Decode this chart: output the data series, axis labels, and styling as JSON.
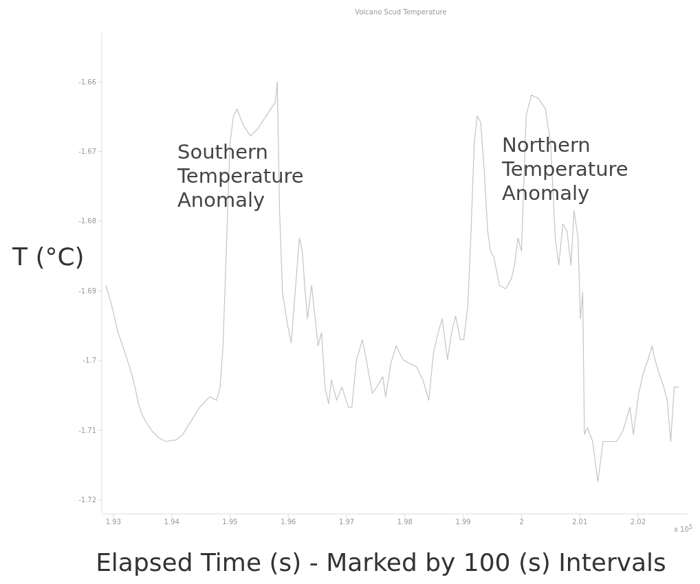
{
  "chart_data": {
    "type": "line",
    "title": "Volcano Scud Temperature",
    "xlabel": "Elapsed Time (s) - Marked by 100 (s) Intervals",
    "ylabel": "T (°C)",
    "annotations": [
      "Southern\nTemperature\nAnomaly",
      "Northern\nTemperature\nAnomaly",
      "x 10$^{5}$"
    ],
    "x": [
      1.9287,
      1.9297,
      1.9308,
      1.932,
      1.9331,
      1.9337,
      1.9343,
      1.9349,
      1.9355,
      1.9366,
      1.9378,
      1.939,
      1.9407,
      1.9419,
      1.943,
      1.9448,
      1.9465,
      1.9477,
      1.9483,
      1.9488,
      1.9494,
      1.95,
      1.9506,
      1.9512,
      1.9523,
      1.9535,
      1.9547,
      1.9558,
      1.957,
      1.9578,
      1.9581,
      1.9585,
      1.959,
      1.9599,
      1.9605,
      1.961,
      1.9619,
      1.9624,
      1.9629,
      1.9633,
      1.964,
      1.9645,
      1.9651,
      1.9657,
      1.9663,
      1.9669,
      1.9674,
      1.9683,
      1.9692,
      1.9703,
      1.9709,
      1.9717,
      1.9727,
      1.9736,
      1.9744,
      1.9752,
      1.9762,
      1.9767,
      1.9776,
      1.9785,
      1.9797,
      1.9808,
      1.982,
      1.9831,
      1.9841,
      1.9849,
      1.9857,
      1.9864,
      1.9873,
      1.988,
      1.9887,
      1.9895,
      1.9901,
      1.9908,
      1.9913,
      1.9919,
      1.9924,
      1.993,
      1.9936,
      1.9942,
      1.9947,
      1.9953,
      1.9962,
      1.9973,
      1.9983,
      1.9988,
      1.9994,
      2.0,
      2.0008,
      2.0017,
      2.0029,
      2.0041,
      2.005,
      2.0058,
      2.0064,
      2.0071,
      2.0078,
      2.0085,
      2.009,
      2.0097,
      2.0101,
      2.0105,
      2.0108,
      2.0113,
      2.0122,
      2.0131,
      2.014,
      2.0151,
      2.0163,
      2.0174,
      2.0186,
      2.0192,
      2.0201,
      2.0209,
      2.0217,
      2.0224,
      2.0229,
      2.0236,
      2.0244,
      2.025,
      2.0256,
      2.0262,
      2.027
    ],
    "series": [
      {
        "color": "#c4c4c4",
        "values": [
          -1.6892,
          -1.6921,
          -1.696,
          -1.6989,
          -1.7018,
          -1.7038,
          -1.7062,
          -1.7077,
          -1.7087,
          -1.7101,
          -1.7111,
          -1.7116,
          -1.7114,
          -1.7106,
          -1.7091,
          -1.7067,
          -1.7052,
          -1.7057,
          -1.7038,
          -1.6979,
          -1.6833,
          -1.6688,
          -1.6649,
          -1.6639,
          -1.6663,
          -1.6678,
          -1.6668,
          -1.6654,
          -1.6639,
          -1.6629,
          -1.66,
          -1.6785,
          -1.6902,
          -1.695,
          -1.6975,
          -1.6921,
          -1.6824,
          -1.6843,
          -1.6902,
          -1.694,
          -1.6892,
          -1.6931,
          -1.6979,
          -1.696,
          -1.7038,
          -1.7062,
          -1.7028,
          -1.7057,
          -1.7038,
          -1.7067,
          -1.7067,
          -1.6999,
          -1.697,
          -1.7009,
          -1.7047,
          -1.7038,
          -1.7023,
          -1.7052,
          -1.7004,
          -1.6979,
          -1.6999,
          -1.7004,
          -1.7009,
          -1.7028,
          -1.7057,
          -1.6989,
          -1.696,
          -1.694,
          -1.6999,
          -1.696,
          -1.6936,
          -1.697,
          -1.697,
          -1.6921,
          -1.6824,
          -1.6688,
          -1.6649,
          -1.6658,
          -1.6726,
          -1.6814,
          -1.6843,
          -1.6853,
          -1.6892,
          -1.6897,
          -1.6882,
          -1.6863,
          -1.6824,
          -1.6843,
          -1.6649,
          -1.6619,
          -1.6624,
          -1.6639,
          -1.6688,
          -1.6824,
          -1.6863,
          -1.6804,
          -1.6814,
          -1.6863,
          -1.6785,
          -1.6824,
          -1.694,
          -1.6902,
          -1.7106,
          -1.7096,
          -1.7116,
          -1.7174,
          -1.7116,
          -1.7116,
          -1.7116,
          -1.7101,
          -1.7067,
          -1.7106,
          -1.7047,
          -1.7018,
          -1.6999,
          -1.6979,
          -1.6999,
          -1.7018,
          -1.7038,
          -1.7057,
          -1.7116,
          -1.7038,
          -1.7038
        ]
      }
    ],
    "xlim": [
      1.928,
      2.0285
    ],
    "xticks": [
      1.93,
      1.94,
      1.95,
      1.96,
      1.97,
      1.98,
      1.99,
      2,
      2.01,
      2.02
    ],
    "ylim": [
      -1.722,
      -1.653
    ],
    "yticks": [
      -1.72,
      -1.71,
      -1.7,
      -1.69,
      -1.68,
      -1.67,
      -1.66
    ]
  }
}
